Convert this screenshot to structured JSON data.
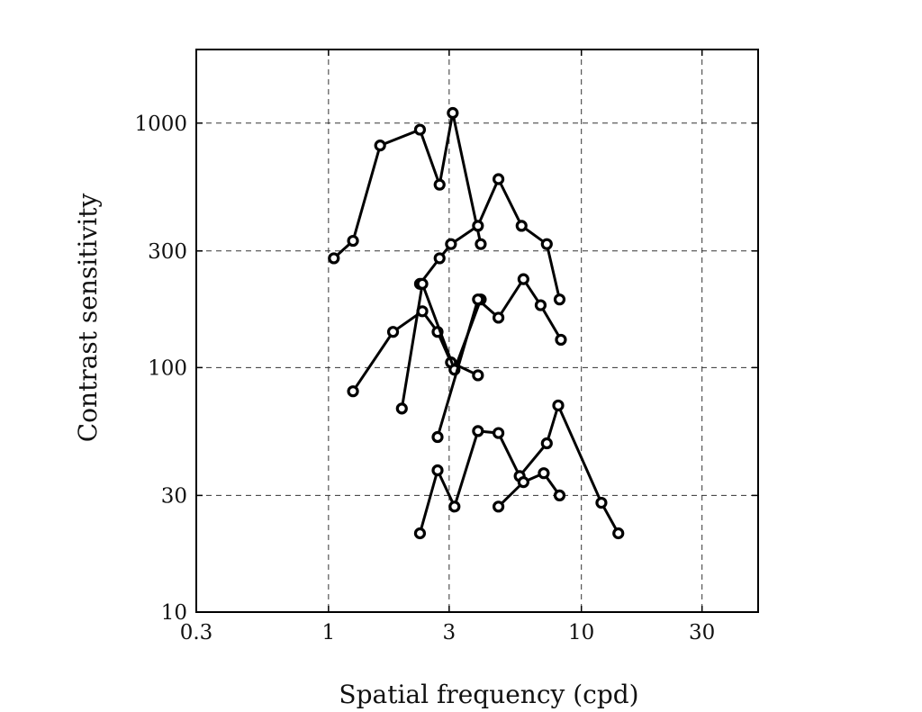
{
  "chart_data": {
    "type": "line",
    "title": "",
    "xlabel": "Spatial frequency (cpd)",
    "ylabel": "Contrast sensitivity",
    "xscale": "log",
    "yscale": "log",
    "xlim": [
      0.3,
      50
    ],
    "ylim": [
      10,
      2000
    ],
    "xticks": [
      0.3,
      1,
      3,
      10,
      30
    ],
    "xtick_labels": [
      "0.3",
      "1",
      "3",
      "10",
      "30"
    ],
    "yticks": [
      10,
      30,
      100,
      300,
      1000
    ],
    "ytick_labels": [
      "10",
      "30",
      "100",
      "300",
      "1000"
    ],
    "grid": true,
    "legend": "none",
    "marker": "circle",
    "series_color": "#000000",
    "series": [
      {
        "x": [
          1.05,
          1.25,
          1.6,
          2.3,
          2.75,
          3.1,
          4.0
        ],
        "y": [
          280,
          330,
          810,
          940,
          560,
          1100,
          320
        ]
      },
      {
        "x": [
          2.3,
          2.75,
          3.05,
          3.9,
          4.7,
          5.8,
          7.3,
          8.2
        ],
        "y": [
          220,
          280,
          320,
          380,
          590,
          380,
          320,
          190
        ]
      },
      {
        "x": [
          1.25,
          1.8,
          2.35,
          2.7,
          3.05,
          3.9
        ],
        "y": [
          80,
          140,
          170,
          140,
          105,
          93
        ]
      },
      {
        "x": [
          1.95,
          2.35,
          3.15,
          4.0
        ],
        "y": [
          68,
          220,
          98,
          190
        ]
      },
      {
        "x": [
          2.7,
          3.9,
          4.7,
          5.9,
          6.9,
          8.3
        ],
        "y": [
          52,
          190,
          160,
          230,
          180,
          130
        ]
      },
      {
        "x": [
          2.3,
          2.7,
          3.15,
          3.9,
          4.7,
          5.7,
          7.3,
          8.1,
          12.0,
          14.0
        ],
        "y": [
          21,
          38,
          27,
          55,
          54,
          36,
          49,
          70,
          28,
          21
        ]
      },
      {
        "x": [
          4.7,
          5.9,
          7.1,
          8.2
        ],
        "y": [
          27,
          34,
          37,
          30
        ]
      }
    ]
  }
}
